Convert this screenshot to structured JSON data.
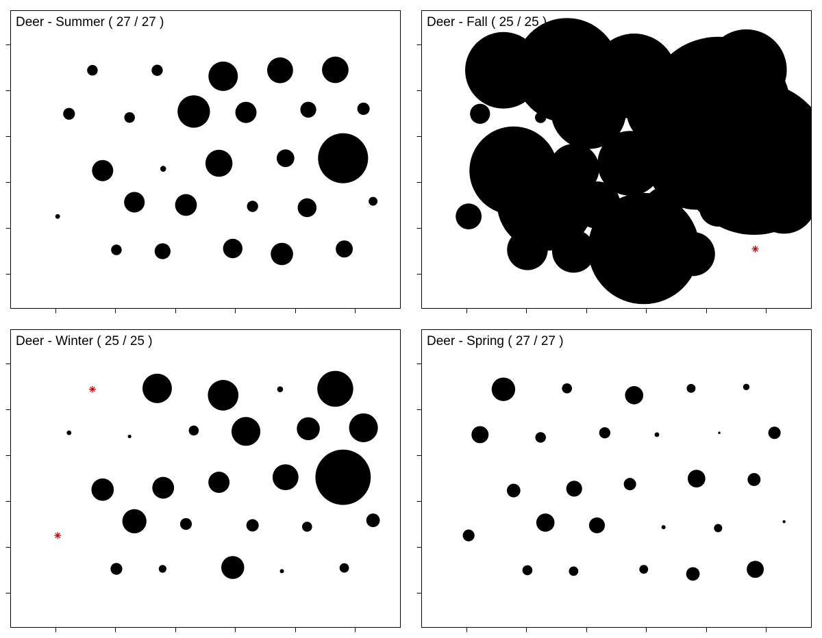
{
  "colors": {
    "bubble": "#000000",
    "zero_marker": "#cc0000",
    "background": "#ffffff"
  },
  "chart_data": [
    {
      "type": "scatter",
      "title": "Deer - Summer ( 27 / 27 )",
      "xlim": [
        0,
        6.5
      ],
      "ylim": [
        0,
        6.5
      ],
      "xticks": [
        0.75,
        1.75,
        2.75,
        3.75,
        4.75,
        5.75
      ],
      "yticks": [
        0.75,
        1.75,
        2.75,
        3.75,
        4.75,
        5.75
      ],
      "grid": false,
      "points": [
        {
          "x": 1.37,
          "y": 5.19,
          "size": 0.36
        },
        {
          "x": 2.45,
          "y": 5.19,
          "size": 0.38
        },
        {
          "x": 3.55,
          "y": 5.06,
          "size": 1.0
        },
        {
          "x": 4.5,
          "y": 5.19,
          "size": 0.88
        },
        {
          "x": 5.42,
          "y": 5.2,
          "size": 0.9
        },
        {
          "x": 0.98,
          "y": 4.24,
          "size": 0.4
        },
        {
          "x": 1.99,
          "y": 4.16,
          "size": 0.36
        },
        {
          "x": 3.06,
          "y": 4.29,
          "size": 1.1
        },
        {
          "x": 3.93,
          "y": 4.27,
          "size": 0.72
        },
        {
          "x": 4.97,
          "y": 4.33,
          "size": 0.54
        },
        {
          "x": 5.89,
          "y": 4.35,
          "size": 0.42
        },
        {
          "x": 1.54,
          "y": 3.0,
          "size": 0.72
        },
        {
          "x": 2.55,
          "y": 3.04,
          "size": 0.2
        },
        {
          "x": 3.48,
          "y": 3.16,
          "size": 0.92
        },
        {
          "x": 4.59,
          "y": 3.27,
          "size": 0.6
        },
        {
          "x": 5.55,
          "y": 3.27,
          "size": 1.7
        },
        {
          "x": 2.07,
          "y": 2.31,
          "size": 0.7
        },
        {
          "x": 2.93,
          "y": 2.25,
          "size": 0.74
        },
        {
          "x": 4.04,
          "y": 2.22,
          "size": 0.38
        },
        {
          "x": 4.95,
          "y": 2.19,
          "size": 0.64
        },
        {
          "x": 6.05,
          "y": 2.33,
          "size": 0.3
        },
        {
          "x": 0.79,
          "y": 2.0,
          "size": 0.16
        },
        {
          "x": 1.77,
          "y": 1.27,
          "size": 0.36
        },
        {
          "x": 2.54,
          "y": 1.24,
          "size": 0.54
        },
        {
          "x": 3.71,
          "y": 1.3,
          "size": 0.66
        },
        {
          "x": 4.53,
          "y": 1.18,
          "size": 0.76
        },
        {
          "x": 5.57,
          "y": 1.29,
          "size": 0.58
        }
      ]
    },
    {
      "type": "scatter",
      "title": "Deer - Fall ( 25 / 25 )",
      "xlim": [
        0,
        6.5
      ],
      "ylim": [
        0,
        6.5
      ],
      "xticks": [
        0.75,
        1.75,
        2.75,
        3.75,
        4.75,
        5.75
      ],
      "yticks": [
        0.75,
        1.75,
        2.75,
        3.75,
        4.75,
        5.75
      ],
      "grid": false,
      "points": [
        {
          "x": 1.37,
          "y": 5.19,
          "size": 2.6
        },
        {
          "x": 2.43,
          "y": 5.19,
          "size": 3.55
        },
        {
          "x": 3.55,
          "y": 5.06,
          "size": 2.9
        },
        {
          "x": 4.5,
          "y": 5.19,
          "size": 1.25
        },
        {
          "x": 5.42,
          "y": 5.2,
          "size": 2.75
        },
        {
          "x": 0.98,
          "y": 4.24,
          "size": 0.68
        },
        {
          "x": 1.99,
          "y": 4.16,
          "size": 0.38
        },
        {
          "x": 2.79,
          "y": 4.29,
          "size": 2.55
        },
        {
          "x": 3.93,
          "y": 4.27,
          "size": 2.05
        },
        {
          "x": 4.95,
          "y": 4.33,
          "size": 4.95
        },
        {
          "x": 5.89,
          "y": 4.35,
          "size": 0.01,
          "zero": true
        },
        {
          "x": 1.54,
          "y": 3.0,
          "size": 3.0
        },
        {
          "x": 2.55,
          "y": 3.04,
          "size": 1.7
        },
        {
          "x": 3.48,
          "y": 3.16,
          "size": 2.2
        },
        {
          "x": 4.59,
          "y": 3.27,
          "size": 3.5
        },
        {
          "x": 5.55,
          "y": 3.27,
          "size": 5.2
        },
        {
          "x": 2.07,
          "y": 2.31,
          "size": 3.3
        },
        {
          "x": 2.93,
          "y": 2.25,
          "size": 1.6
        },
        {
          "x": 4.04,
          "y": 2.22,
          "size": 1.3
        },
        {
          "x": 4.95,
          "y": 2.19,
          "size": 1.28
        },
        {
          "x": 6.05,
          "y": 2.33,
          "size": 2.2
        },
        {
          "x": 0.79,
          "y": 2.0,
          "size": 0.88
        },
        {
          "x": 1.77,
          "y": 1.27,
          "size": 1.38
        },
        {
          "x": 2.54,
          "y": 1.24,
          "size": 1.46
        },
        {
          "x": 3.71,
          "y": 1.3,
          "size": 3.78
        },
        {
          "x": 4.53,
          "y": 1.18,
          "size": 1.5
        },
        {
          "x": 5.57,
          "y": 1.29,
          "size": 0.01,
          "zero": true
        }
      ]
    },
    {
      "type": "scatter",
      "title": "Deer - Winter ( 25 / 25 )",
      "xlim": [
        0,
        6.5
      ],
      "ylim": [
        0,
        6.5
      ],
      "xticks": [
        0.75,
        1.75,
        2.75,
        3.75,
        4.75,
        5.75
      ],
      "yticks": [
        0.75,
        1.75,
        2.75,
        3.75,
        4.75,
        5.75
      ],
      "grid": false,
      "points": [
        {
          "x": 1.37,
          "y": 5.19,
          "size": 0.01,
          "zero": true
        },
        {
          "x": 2.45,
          "y": 5.21,
          "size": 1.0
        },
        {
          "x": 3.55,
          "y": 5.06,
          "size": 1.04
        },
        {
          "x": 4.5,
          "y": 5.19,
          "size": 0.2
        },
        {
          "x": 5.42,
          "y": 5.2,
          "size": 1.22
        },
        {
          "x": 0.98,
          "y": 4.24,
          "size": 0.16
        },
        {
          "x": 1.99,
          "y": 4.16,
          "size": 0.12
        },
        {
          "x": 3.06,
          "y": 4.29,
          "size": 0.34
        },
        {
          "x": 3.93,
          "y": 4.27,
          "size": 0.98
        },
        {
          "x": 4.97,
          "y": 4.33,
          "size": 0.78
        },
        {
          "x": 5.89,
          "y": 4.35,
          "size": 0.98
        },
        {
          "x": 1.54,
          "y": 3.0,
          "size": 0.76
        },
        {
          "x": 2.55,
          "y": 3.04,
          "size": 0.74
        },
        {
          "x": 3.48,
          "y": 3.16,
          "size": 0.72
        },
        {
          "x": 4.59,
          "y": 3.27,
          "size": 0.88
        },
        {
          "x": 5.55,
          "y": 3.27,
          "size": 1.88
        },
        {
          "x": 2.07,
          "y": 2.31,
          "size": 0.82
        },
        {
          "x": 2.93,
          "y": 2.25,
          "size": 0.4
        },
        {
          "x": 4.04,
          "y": 2.22,
          "size": 0.42
        },
        {
          "x": 4.95,
          "y": 2.19,
          "size": 0.34
        },
        {
          "x": 6.05,
          "y": 2.33,
          "size": 0.46
        },
        {
          "x": 0.79,
          "y": 2.0,
          "size": 0.01,
          "zero": true
        },
        {
          "x": 1.77,
          "y": 1.27,
          "size": 0.4
        },
        {
          "x": 2.54,
          "y": 1.27,
          "size": 0.26
        },
        {
          "x": 3.71,
          "y": 1.3,
          "size": 0.78
        },
        {
          "x": 4.53,
          "y": 1.22,
          "size": 0.14
        },
        {
          "x": 5.57,
          "y": 1.29,
          "size": 0.32
        }
      ]
    },
    {
      "type": "scatter",
      "title": "Deer - Spring ( 27 / 27 )",
      "xlim": [
        0,
        6.5
      ],
      "ylim": [
        0,
        6.5
      ],
      "xticks": [
        0.75,
        1.75,
        2.75,
        3.75,
        4.75,
        5.75
      ],
      "yticks": [
        0.75,
        1.75,
        2.75,
        3.75,
        4.75,
        5.75
      ],
      "grid": false,
      "points": [
        {
          "x": 1.37,
          "y": 5.19,
          "size": 0.8
        },
        {
          "x": 2.43,
          "y": 5.21,
          "size": 0.34
        },
        {
          "x": 3.55,
          "y": 5.06,
          "size": 0.62
        },
        {
          "x": 4.5,
          "y": 5.21,
          "size": 0.3
        },
        {
          "x": 5.42,
          "y": 5.24,
          "size": 0.22
        },
        {
          "x": 0.98,
          "y": 4.2,
          "size": 0.58
        },
        {
          "x": 1.99,
          "y": 4.14,
          "size": 0.36
        },
        {
          "x": 3.06,
          "y": 4.24,
          "size": 0.38
        },
        {
          "x": 3.93,
          "y": 4.2,
          "size": 0.16
        },
        {
          "x": 4.97,
          "y": 4.24,
          "size": 0.08
        },
        {
          "x": 5.89,
          "y": 4.24,
          "size": 0.42
        },
        {
          "x": 1.54,
          "y": 2.98,
          "size": 0.46
        },
        {
          "x": 2.55,
          "y": 3.02,
          "size": 0.54
        },
        {
          "x": 3.48,
          "y": 3.12,
          "size": 0.42
        },
        {
          "x": 4.59,
          "y": 3.24,
          "size": 0.6
        },
        {
          "x": 5.55,
          "y": 3.22,
          "size": 0.44
        },
        {
          "x": 2.07,
          "y": 2.28,
          "size": 0.62
        },
        {
          "x": 2.93,
          "y": 2.22,
          "size": 0.54
        },
        {
          "x": 4.04,
          "y": 2.18,
          "size": 0.14
        },
        {
          "x": 4.95,
          "y": 2.16,
          "size": 0.28
        },
        {
          "x": 6.05,
          "y": 2.3,
          "size": 0.1
        },
        {
          "x": 0.79,
          "y": 2.0,
          "size": 0.4
        },
        {
          "x": 1.77,
          "y": 1.24,
          "size": 0.34
        },
        {
          "x": 2.54,
          "y": 1.22,
          "size": 0.32
        },
        {
          "x": 3.71,
          "y": 1.26,
          "size": 0.3
        },
        {
          "x": 4.53,
          "y": 1.16,
          "size": 0.46
        },
        {
          "x": 5.57,
          "y": 1.26,
          "size": 0.58
        }
      ]
    }
  ]
}
